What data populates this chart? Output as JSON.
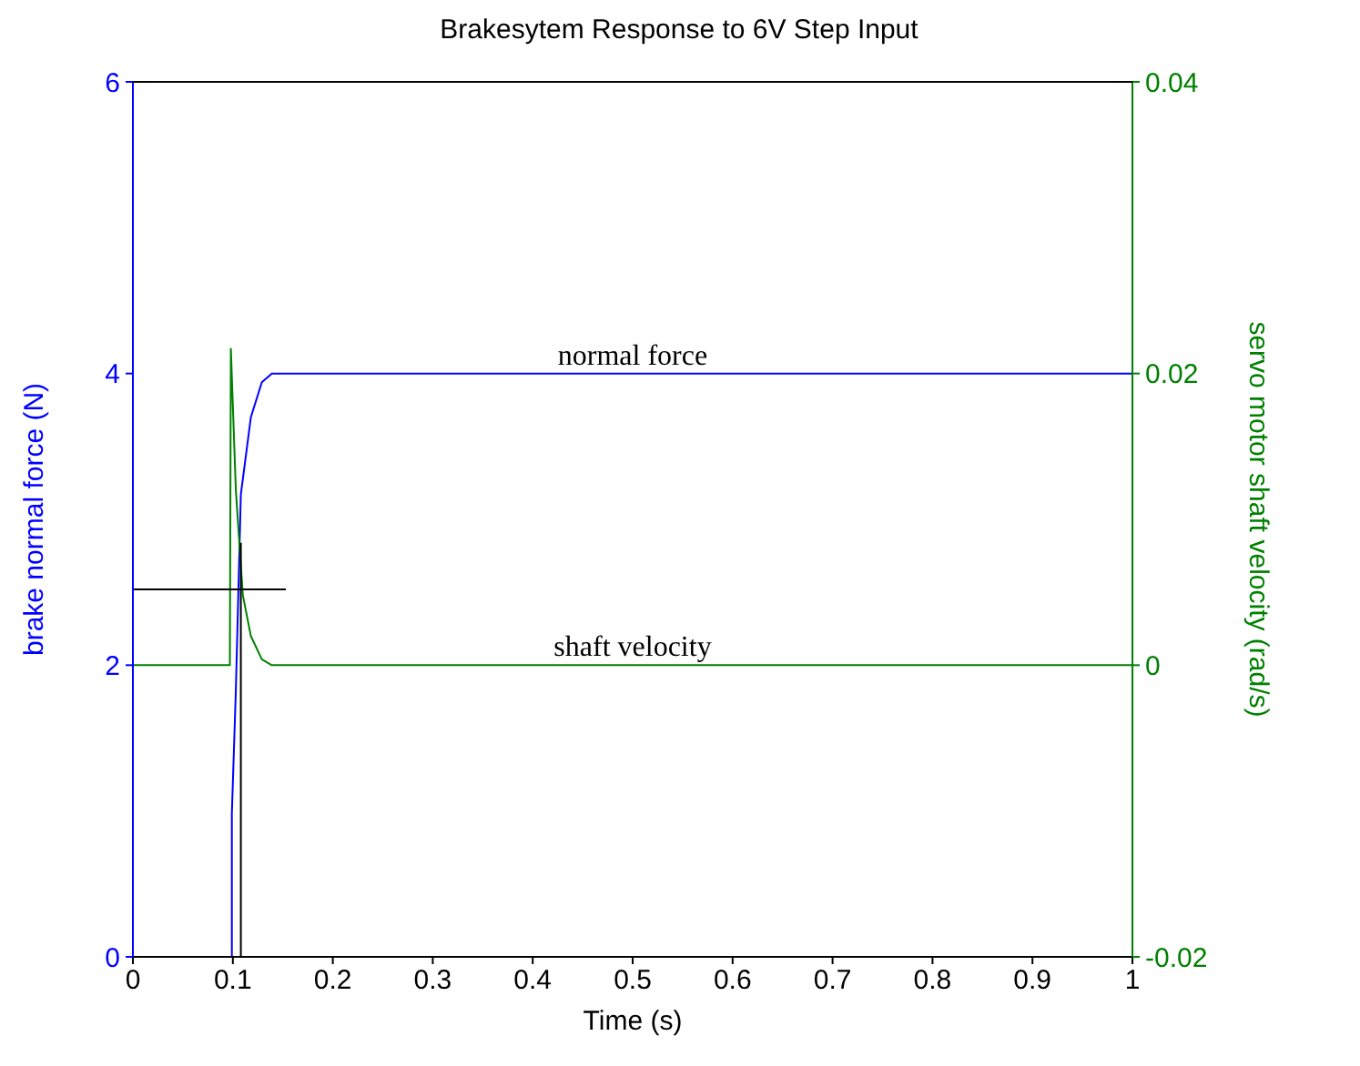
{
  "chart_data": {
    "type": "line",
    "title": "Brakesytem Response to 6V Step Input",
    "xlabel": "Time (s)",
    "ylabel": "brake normal force (N)",
    "y2label": "servo motor shaft velocity (rad/s)",
    "xlim": [
      0,
      1
    ],
    "xticks": [
      0,
      0.1,
      0.2,
      0.3,
      0.4,
      0.5,
      0.6,
      0.7,
      0.8,
      0.9,
      1
    ],
    "ylim": [
      0,
      6
    ],
    "yticks": [
      0,
      2,
      4,
      6
    ],
    "y2lim": [
      -0.02,
      0.04
    ],
    "y2ticks": [
      -0.02,
      0,
      0.02,
      0.04
    ],
    "grid": false,
    "legend": false,
    "marker": "none",
    "line_style": "solid",
    "series": [
      {
        "color": "#0000ff",
        "x": [
          0,
          0.099,
          0.099,
          0.103,
          0.108,
          0.118,
          0.129,
          0.139,
          0.155,
          1
        ],
        "values": [
          0,
          0,
          0.98,
          1.83,
          3.17,
          3.7,
          3.94,
          4.0,
          4.0,
          4.0
        ]
      },
      {
        "color": "#008000",
        "axis": "y2",
        "x": [
          0,
          0.097,
          0.098,
          0.1,
          0.103,
          0.106,
          0.11,
          0.118,
          0.129,
          0.139,
          1
        ],
        "values": [
          0,
          0,
          0.0217,
          0.0178,
          0.012,
          0.0089,
          0.0048,
          0.002,
          0.0004,
          0,
          0
        ]
      },
      {
        "color": "#000000",
        "x": [
          0,
          0.153
        ],
        "values": [
          2.52,
          2.52
        ]
      },
      {
        "color": "#000000",
        "x": [
          0.108,
          0.108
        ],
        "values": [
          0,
          2.84
        ]
      }
    ],
    "annotations": [
      {
        "text": "normal force",
        "x": 0.5,
        "y": 4
      },
      {
        "text": "shaft velocity",
        "x": 0.5,
        "y": 2
      }
    ]
  }
}
